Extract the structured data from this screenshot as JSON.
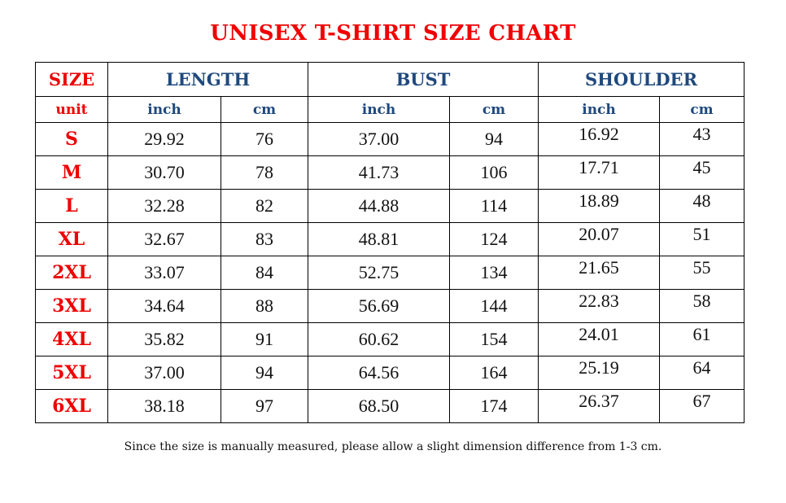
{
  "title": "UNISEX T-SHIRT SIZE CHART",
  "colors": {
    "title": "#ee0000",
    "size_labels": "#ee0000",
    "headers": "#1f497d"
  },
  "table": {
    "headers": {
      "size": "SIZE",
      "length": "LENGTH",
      "bust": "BUST",
      "shoulder": "SHOULDER"
    },
    "units": {
      "label": "unit",
      "inch": "inch",
      "cm": "cm"
    },
    "rows": [
      {
        "size": "S",
        "length_in": "29.92",
        "length_cm": "76",
        "bust_in": "37.00",
        "bust_cm": "94",
        "shoulder_in": "16.92",
        "shoulder_cm": "43"
      },
      {
        "size": "M",
        "length_in": "30.70",
        "length_cm": "78",
        "bust_in": "41.73",
        "bust_cm": "106",
        "shoulder_in": "17.71",
        "shoulder_cm": "45"
      },
      {
        "size": "L",
        "length_in": "32.28",
        "length_cm": "82",
        "bust_in": "44.88",
        "bust_cm": "114",
        "shoulder_in": "18.89",
        "shoulder_cm": "48"
      },
      {
        "size": "XL",
        "length_in": "32.67",
        "length_cm": "83",
        "bust_in": "48.81",
        "bust_cm": "124",
        "shoulder_in": "20.07",
        "shoulder_cm": "51"
      },
      {
        "size": "2XL",
        "length_in": "33.07",
        "length_cm": "84",
        "bust_in": "52.75",
        "bust_cm": "134",
        "shoulder_in": "21.65",
        "shoulder_cm": "55"
      },
      {
        "size": "3XL",
        "length_in": "34.64",
        "length_cm": "88",
        "bust_in": "56.69",
        "bust_cm": "144",
        "shoulder_in": "22.83",
        "shoulder_cm": "58"
      },
      {
        "size": "4XL",
        "length_in": "35.82",
        "length_cm": "91",
        "bust_in": "60.62",
        "bust_cm": "154",
        "shoulder_in": "24.01",
        "shoulder_cm": "61"
      },
      {
        "size": "5XL",
        "length_in": "37.00",
        "length_cm": "94",
        "bust_in": "64.56",
        "bust_cm": "164",
        "shoulder_in": "25.19",
        "shoulder_cm": "64"
      },
      {
        "size": "6XL",
        "length_in": "38.18",
        "length_cm": "97",
        "bust_in": "68.50",
        "bust_cm": "174",
        "shoulder_in": "26.37",
        "shoulder_cm": "67"
      }
    ]
  },
  "note": "Since the size is manually measured, please allow a slight dimension difference from 1-3 cm."
}
